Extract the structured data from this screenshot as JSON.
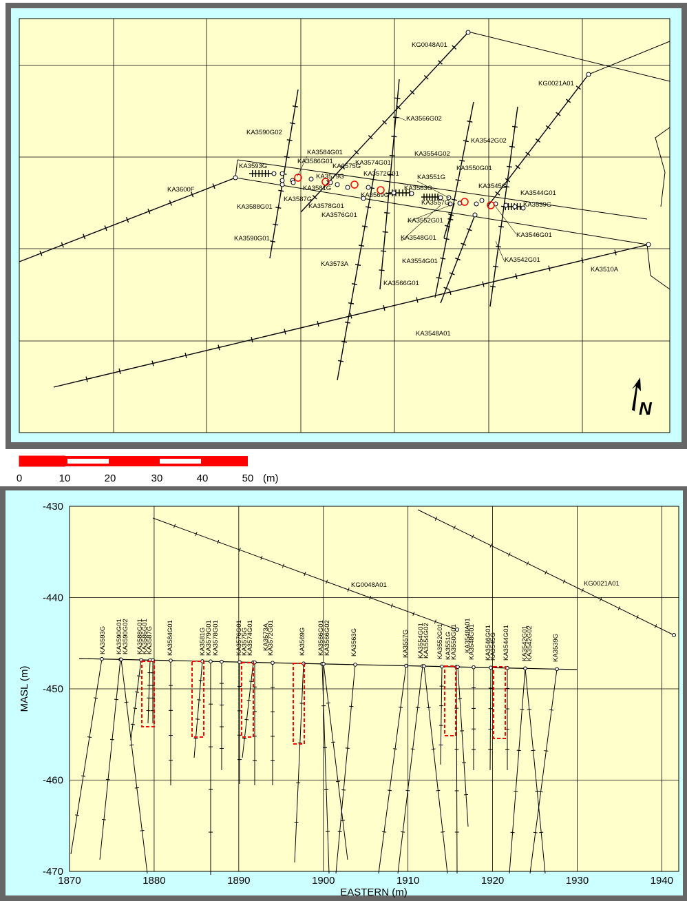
{
  "plan": {
    "north_label": "N",
    "boreholes": [
      "KG0048A01",
      "KG0021A01",
      "KA3590G02",
      "KA3566G02",
      "KA3542G02",
      "KA3554G02",
      "KA3584G01",
      "KA3586G01",
      "KA3593G",
      "KA3575G",
      "KA3574G01",
      "KA3572G01",
      "KA3550G01",
      "KA3551G",
      "KA3579G",
      "KA3600F",
      "KA3581G",
      "KA3563G",
      "KA3545G",
      "KA3544G01",
      "KA3569G",
      "KA3557G",
      "KA3539G",
      "KA3587G",
      "KA3588G01",
      "KA3578G01",
      "KA3576G01",
      "KA3552G01",
      "KA3546G01",
      "KA3548G01",
      "KA3590G01",
      "KA3573A",
      "KA3554G01",
      "KA3542G01",
      "KA3510A",
      "KA3566G01",
      "KA3548A01"
    ]
  },
  "scale": {
    "ticks": [
      "0",
      "10",
      "20",
      "30",
      "40",
      "50"
    ],
    "unit": "(m)"
  },
  "section": {
    "ylabel": "MASL (m)",
    "xlabel": "EASTERN (m)",
    "yticks": [
      "-430",
      "-440",
      "-450",
      "-460",
      "-470"
    ],
    "xticks": [
      "1870",
      "1880",
      "1890",
      "1900",
      "1910",
      "1920",
      "1930",
      "1940"
    ],
    "long_holes": [
      "KG0048A01",
      "KG0021A01"
    ],
    "collar_labels": [
      "KA3593G",
      "KA3590G01",
      "KA3590G02",
      "KA3588G01",
      "KA3586G01",
      "KA3587G",
      "KA3584G01",
      "KA3581G",
      "KA3579G01",
      "KA3578G01",
      "KA3576G01",
      "KA3575G",
      "KA3574G01",
      "KA3573A",
      "KA3572G01",
      "KA3569G",
      "KA3566G01",
      "KA3566G02",
      "KA3563G",
      "KA3557G",
      "KA3554G01",
      "KA3554G02",
      "KA3552G01",
      "KA3551G",
      "KA3550G01",
      "KA3548A01",
      "KA3548G01",
      "KA3546G01",
      "KA3545G",
      "KA3544G01",
      "KA3542G01",
      "KA3542G02",
      "KA3539G"
    ]
  }
}
